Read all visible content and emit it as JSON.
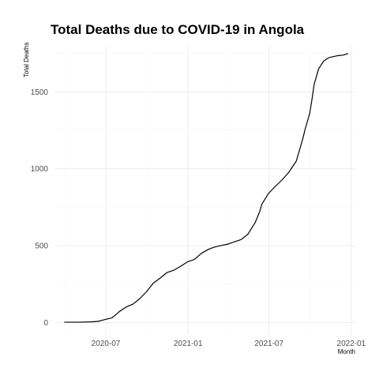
{
  "chart_data": {
    "type": "line",
    "title": "Total Deaths due to COVID-19 in Angola",
    "xlabel": "Month",
    "ylabel": "Total Deaths",
    "x_is_date": true,
    "xlim": [
      "2020-03-10",
      "2022-01-10"
    ],
    "ylim": [
      -80,
      1800
    ],
    "x_major_ticks": [
      {
        "date": "2020-07-01",
        "label": "2020-07"
      },
      {
        "date": "2021-01-01",
        "label": "2021-01"
      },
      {
        "date": "2021-07-01",
        "label": "2021-07"
      },
      {
        "date": "2022-01-01",
        "label": "2022-01"
      }
    ],
    "x_minor_ticks": [
      "2020-04-01",
      "2020-10-01",
      "2021-04-01",
      "2021-10-01"
    ],
    "y_major_ticks": [
      0,
      500,
      1000,
      1500
    ],
    "y_minor_ticks": [
      250,
      750,
      1250,
      1750
    ],
    "grid": true,
    "legend": "none",
    "series": [
      {
        "x": [
          "2020-03-30",
          "2020-04-30",
          "2020-05-31",
          "2020-06-15",
          "2020-06-30",
          "2020-07-15",
          "2020-07-31",
          "2020-08-15",
          "2020-08-31",
          "2020-09-15",
          "2020-09-30",
          "2020-10-15",
          "2020-10-31",
          "2020-11-15",
          "2020-11-30",
          "2020-12-15",
          "2020-12-31",
          "2021-01-15",
          "2021-01-31",
          "2021-02-15",
          "2021-02-28",
          "2021-03-15",
          "2021-03-31",
          "2021-04-15",
          "2021-04-30",
          "2021-05-15",
          "2021-05-31",
          "2021-06-10",
          "2021-06-15",
          "2021-06-30",
          "2021-07-15",
          "2021-07-31",
          "2021-08-15",
          "2021-08-31",
          "2021-09-10",
          "2021-09-15",
          "2021-09-20",
          "2021-09-30",
          "2021-10-05",
          "2021-10-10",
          "2021-10-15",
          "2021-10-20",
          "2021-10-31",
          "2021-11-10",
          "2021-11-15",
          "2021-11-30",
          "2021-12-15",
          "2021-12-25"
        ],
        "y": [
          2,
          2,
          4,
          8,
          20,
          30,
          70,
          100,
          120,
          155,
          200,
          255,
          290,
          325,
          340,
          365,
          395,
          410,
          450,
          475,
          490,
          500,
          510,
          525,
          540,
          575,
          650,
          720,
          770,
          840,
          885,
          930,
          980,
          1050,
          1150,
          1200,
          1260,
          1360,
          1450,
          1550,
          1600,
          1650,
          1700,
          1720,
          1725,
          1735,
          1740,
          1750
        ]
      }
    ]
  }
}
